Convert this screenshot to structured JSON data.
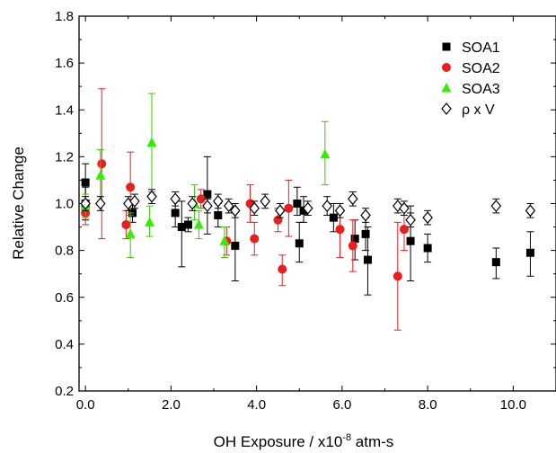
{
  "chart_data": {
    "type": "scatter",
    "title": "",
    "xlabel_main": "OH Exposure / x10",
    "xlabel_exp": "-8",
    "xlabel_suffix": " atm-s",
    "ylabel": "Relative Change",
    "xlim": [
      -0.15,
      11.0
    ],
    "ylim": [
      0.2,
      1.8
    ],
    "xticks": [
      0.0,
      2.0,
      4.0,
      6.0,
      8.0,
      10.0
    ],
    "xtick_labels": [
      "0.0",
      "2.0",
      "4.0",
      "6.0",
      "8.0",
      "10.0"
    ],
    "yticks": [
      0.2,
      0.4,
      0.6,
      0.8,
      1.0,
      1.2,
      1.4,
      1.6,
      1.8
    ],
    "ytick_labels": [
      "0.2",
      "0.4",
      "0.6",
      "0.8",
      "1.0",
      "1.2",
      "1.4",
      "1.6",
      "1.8"
    ],
    "legend_position": "top-right",
    "series": [
      {
        "name": "SOA1",
        "marker": "square",
        "color": "#000000",
        "error_color": "#000000",
        "points": [
          {
            "x": 0.0,
            "y": 1.09,
            "lo": 1.0,
            "hi": 1.17
          },
          {
            "x": 0.0,
            "y": 1.0,
            "lo": 0.93,
            "hi": 1.07
          },
          {
            "x": 1.1,
            "y": 0.96,
            "lo": 0.92,
            "hi": 1.0
          },
          {
            "x": 2.1,
            "y": 0.96,
            "lo": 0.9,
            "hi": 1.02
          },
          {
            "x": 2.25,
            "y": 0.9,
            "lo": 0.73,
            "hi": 1.01
          },
          {
            "x": 2.4,
            "y": 0.91,
            "lo": 0.88,
            "hi": 0.94
          },
          {
            "x": 2.85,
            "y": 1.04,
            "lo": 0.87,
            "hi": 1.2
          },
          {
            "x": 3.1,
            "y": 0.95,
            "lo": 0.9,
            "hi": 1.0
          },
          {
            "x": 3.5,
            "y": 0.82,
            "lo": 0.67,
            "hi": 0.97
          },
          {
            "x": 4.95,
            "y": 1.0,
            "lo": 0.95,
            "hi": 1.07
          },
          {
            "x": 5.0,
            "y": 0.83,
            "lo": 0.75,
            "hi": 0.92
          },
          {
            "x": 5.1,
            "y": 0.97,
            "lo": 0.92,
            "hi": 1.03
          },
          {
            "x": 5.8,
            "y": 0.94,
            "lo": 0.88,
            "hi": 1.0
          },
          {
            "x": 6.3,
            "y": 0.85,
            "lo": 0.76,
            "hi": 0.93
          },
          {
            "x": 6.55,
            "y": 0.87,
            "lo": 0.8,
            "hi": 0.94
          },
          {
            "x": 6.6,
            "y": 0.76,
            "lo": 0.61,
            "hi": 0.9
          },
          {
            "x": 7.6,
            "y": 0.84,
            "lo": 0.67,
            "hi": 0.99
          },
          {
            "x": 8.0,
            "y": 0.81,
            "lo": 0.75,
            "hi": 0.87
          },
          {
            "x": 9.6,
            "y": 0.75,
            "lo": 0.68,
            "hi": 0.81
          },
          {
            "x": 10.4,
            "y": 0.79,
            "lo": 0.69,
            "hi": 0.88
          }
        ]
      },
      {
        "name": "SOA2",
        "marker": "circle",
        "color": "#ee1d1d",
        "error_color": "#ee1d1d",
        "points": [
          {
            "x": 0.0,
            "y": 0.96,
            "lo": 0.91,
            "hi": 1.01
          },
          {
            "x": 0.38,
            "y": 1.17,
            "lo": 0.85,
            "hi": 1.49
          },
          {
            "x": 0.95,
            "y": 0.91,
            "lo": 0.85,
            "hi": 0.97
          },
          {
            "x": 1.05,
            "y": 1.07,
            "lo": 0.95,
            "hi": 1.22
          },
          {
            "x": 2.7,
            "y": 1.02,
            "lo": 0.98,
            "hi": 1.06
          },
          {
            "x": 3.3,
            "y": 0.84,
            "lo": 0.78,
            "hi": 0.9
          },
          {
            "x": 3.85,
            "y": 1.0,
            "lo": 0.92,
            "hi": 1.08
          },
          {
            "x": 3.95,
            "y": 0.85,
            "lo": 0.78,
            "hi": 0.92
          },
          {
            "x": 4.5,
            "y": 0.93,
            "lo": 0.88,
            "hi": 0.98
          },
          {
            "x": 4.6,
            "y": 0.72,
            "lo": 0.65,
            "hi": 0.78
          },
          {
            "x": 4.75,
            "y": 0.98,
            "lo": 0.86,
            "hi": 1.1
          },
          {
            "x": 5.95,
            "y": 0.89,
            "lo": 0.77,
            "hi": 1.0
          },
          {
            "x": 6.25,
            "y": 0.82,
            "lo": 0.71,
            "hi": 0.93
          },
          {
            "x": 7.3,
            "y": 0.69,
            "lo": 0.46,
            "hi": 0.92
          },
          {
            "x": 7.45,
            "y": 0.89,
            "lo": 0.8,
            "hi": 0.98
          }
        ]
      },
      {
        "name": "SOA3",
        "marker": "triangle",
        "color": "#33ee00",
        "error_color": "#33cc00",
        "points": [
          {
            "x": 0.0,
            "y": 0.99,
            "lo": 0.94,
            "hi": 1.04
          },
          {
            "x": 0.35,
            "y": 1.12,
            "lo": 1.0,
            "hi": 1.23
          },
          {
            "x": 1.05,
            "y": 0.87,
            "lo": 0.77,
            "hi": 0.96
          },
          {
            "x": 1.5,
            "y": 0.92,
            "lo": 0.86,
            "hi": 0.99
          },
          {
            "x": 1.55,
            "y": 1.26,
            "lo": 1.05,
            "hi": 1.47
          },
          {
            "x": 2.55,
            "y": 1.0,
            "lo": 0.93,
            "hi": 1.08
          },
          {
            "x": 2.65,
            "y": 0.91,
            "lo": 0.85,
            "hi": 0.97
          },
          {
            "x": 3.25,
            "y": 0.84,
            "lo": 0.77,
            "hi": 0.9
          },
          {
            "x": 5.6,
            "y": 1.21,
            "lo": 1.08,
            "hi": 1.35
          }
        ]
      },
      {
        "name": "ρ x V",
        "marker": "diamond",
        "color": "#000000",
        "error_color": "#000000",
        "points": [
          {
            "x": 0.0,
            "y": 1.0,
            "lo": 0.97,
            "hi": 1.03
          },
          {
            "x": 0.35,
            "y": 1.0,
            "lo": 0.97,
            "hi": 1.03
          },
          {
            "x": 1.0,
            "y": 1.0,
            "lo": 0.97,
            "hi": 1.03
          },
          {
            "x": 1.15,
            "y": 1.01,
            "lo": 0.98,
            "hi": 1.04
          },
          {
            "x": 1.55,
            "y": 1.03,
            "lo": 1.0,
            "hi": 1.06
          },
          {
            "x": 2.1,
            "y": 1.02,
            "lo": 0.99,
            "hi": 1.05
          },
          {
            "x": 2.5,
            "y": 1.0,
            "lo": 0.97,
            "hi": 1.03
          },
          {
            "x": 2.85,
            "y": 0.99,
            "lo": 0.96,
            "hi": 1.02
          },
          {
            "x": 3.1,
            "y": 1.01,
            "lo": 0.98,
            "hi": 1.04
          },
          {
            "x": 3.35,
            "y": 0.99,
            "lo": 0.96,
            "hi": 1.02
          },
          {
            "x": 3.5,
            "y": 0.97,
            "lo": 0.94,
            "hi": 1.0
          },
          {
            "x": 3.95,
            "y": 0.98,
            "lo": 0.95,
            "hi": 1.01
          },
          {
            "x": 4.2,
            "y": 1.01,
            "lo": 0.98,
            "hi": 1.04
          },
          {
            "x": 4.55,
            "y": 0.97,
            "lo": 0.94,
            "hi": 1.0
          },
          {
            "x": 5.2,
            "y": 0.98,
            "lo": 0.95,
            "hi": 1.01
          },
          {
            "x": 5.65,
            "y": 0.99,
            "lo": 0.95,
            "hi": 1.03
          },
          {
            "x": 5.95,
            "y": 0.97,
            "lo": 0.94,
            "hi": 1.0
          },
          {
            "x": 6.25,
            "y": 1.02,
            "lo": 0.99,
            "hi": 1.05
          },
          {
            "x": 6.55,
            "y": 0.95,
            "lo": 0.92,
            "hi": 0.98
          },
          {
            "x": 7.3,
            "y": 0.99,
            "lo": 0.96,
            "hi": 1.02
          },
          {
            "x": 7.45,
            "y": 0.98,
            "lo": 0.95,
            "hi": 1.01
          },
          {
            "x": 7.6,
            "y": 0.93,
            "lo": 0.9,
            "hi": 0.96
          },
          {
            "x": 8.0,
            "y": 0.94,
            "lo": 0.91,
            "hi": 0.97
          },
          {
            "x": 9.6,
            "y": 0.99,
            "lo": 0.96,
            "hi": 1.02
          },
          {
            "x": 10.4,
            "y": 0.97,
            "lo": 0.94,
            "hi": 1.0
          }
        ]
      }
    ]
  }
}
